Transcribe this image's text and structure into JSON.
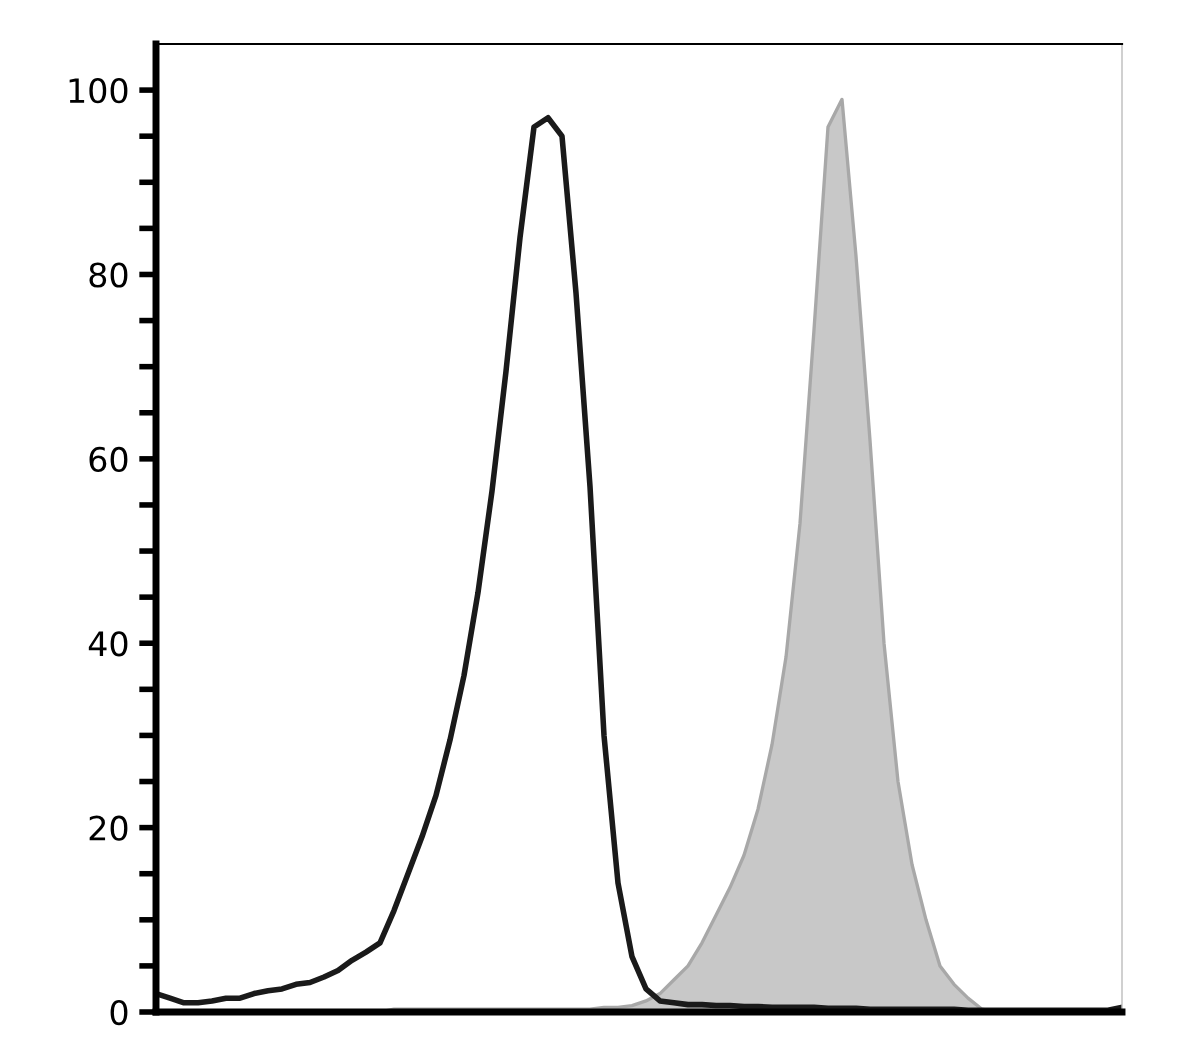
{
  "chart_data": {
    "type": "area",
    "categories": [
      null,
      null,
      null,
      null,
      null,
      null,
      null,
      null,
      null,
      null,
      null,
      null,
      null,
      null,
      null,
      null,
      null,
      null,
      null,
      null,
      null,
      null,
      null,
      null,
      null,
      null,
      null,
      null,
      null,
      null,
      null,
      null,
      null,
      null,
      null,
      null,
      null,
      null,
      null,
      null,
      null,
      null,
      null,
      null,
      null,
      null,
      null,
      null,
      null,
      null,
      null,
      null,
      null,
      null,
      null,
      null,
      null,
      null,
      null,
      null,
      null,
      null,
      null,
      null,
      null,
      null,
      null,
      null,
      null,
      null
    ],
    "series": [
      {
        "color": "#c8c8c8",
        "values": [
          0,
          0,
          0,
          0,
          0,
          0,
          0,
          0,
          0,
          0,
          0,
          0,
          0,
          0,
          0,
          0,
          0,
          0.3,
          0.3,
          0.3,
          0.3,
          0.3,
          0.3,
          0.3,
          0.3,
          0.3,
          0.3,
          0.3,
          0.3,
          0.3,
          0.3,
          0.3,
          0.5,
          0.5,
          0.7,
          1.2,
          2,
          3.5,
          5,
          7.5,
          10.5,
          13.5,
          17,
          22,
          29,
          38.5,
          53,
          74,
          96,
          99,
          82,
          62,
          40,
          25,
          16,
          10,
          5,
          3,
          1.5,
          0.3,
          0,
          0,
          0,
          0,
          0,
          0,
          0,
          0,
          0,
          0
        ]
      },
      {
        "type": "line",
        "color": "#1a1a1a",
        "values": [
          2,
          1.5,
          1,
          1,
          1.2,
          1.5,
          1.5,
          2,
          2.3,
          2.5,
          3,
          3.2,
          3.8,
          4.5,
          5.6,
          6.5,
          7.5,
          11,
          15,
          19,
          23.5,
          29.5,
          36.5,
          45.5,
          56.5,
          69.5,
          84,
          96,
          97,
          95,
          78,
          57,
          30,
          14,
          6,
          2.5,
          1.2,
          1,
          0.8,
          0.8,
          0.7,
          0.7,
          0.6,
          0.6,
          0.5,
          0.5,
          0.5,
          0.5,
          0.4,
          0.4,
          0.4,
          0.3,
          0.3,
          0.3,
          0.3,
          0.3,
          0.3,
          0.3,
          0.2,
          0.2,
          0.2,
          0.2,
          0.2,
          0.2,
          0.2,
          0.2,
          0.2,
          0.2,
          0.2,
          0.5
        ]
      }
    ],
    "ylim": [
      0,
      105
    ],
    "yticks": [
      0,
      {
        "value": 5,
        "label": null
      },
      {
        "value": 10,
        "label": null
      },
      {
        "value": 15,
        "label": null
      },
      20,
      {
        "value": 25,
        "label": null
      },
      {
        "value": 30,
        "label": null
      },
      {
        "value": 35,
        "label": null
      },
      40,
      {
        "value": 45,
        "label": null
      },
      {
        "value": 50,
        "label": null
      },
      {
        "value": 55,
        "label": null
      },
      60,
      {
        "value": 65,
        "label": null
      },
      {
        "value": 70,
        "label": null
      },
      {
        "value": 75,
        "label": null
      },
      80,
      {
        "value": 85,
        "label": null
      },
      {
        "value": 90,
        "label": null
      },
      {
        "value": 95,
        "label": null
      },
      100
    ],
    "tick_labels": "y",
    "grid": false
  }
}
